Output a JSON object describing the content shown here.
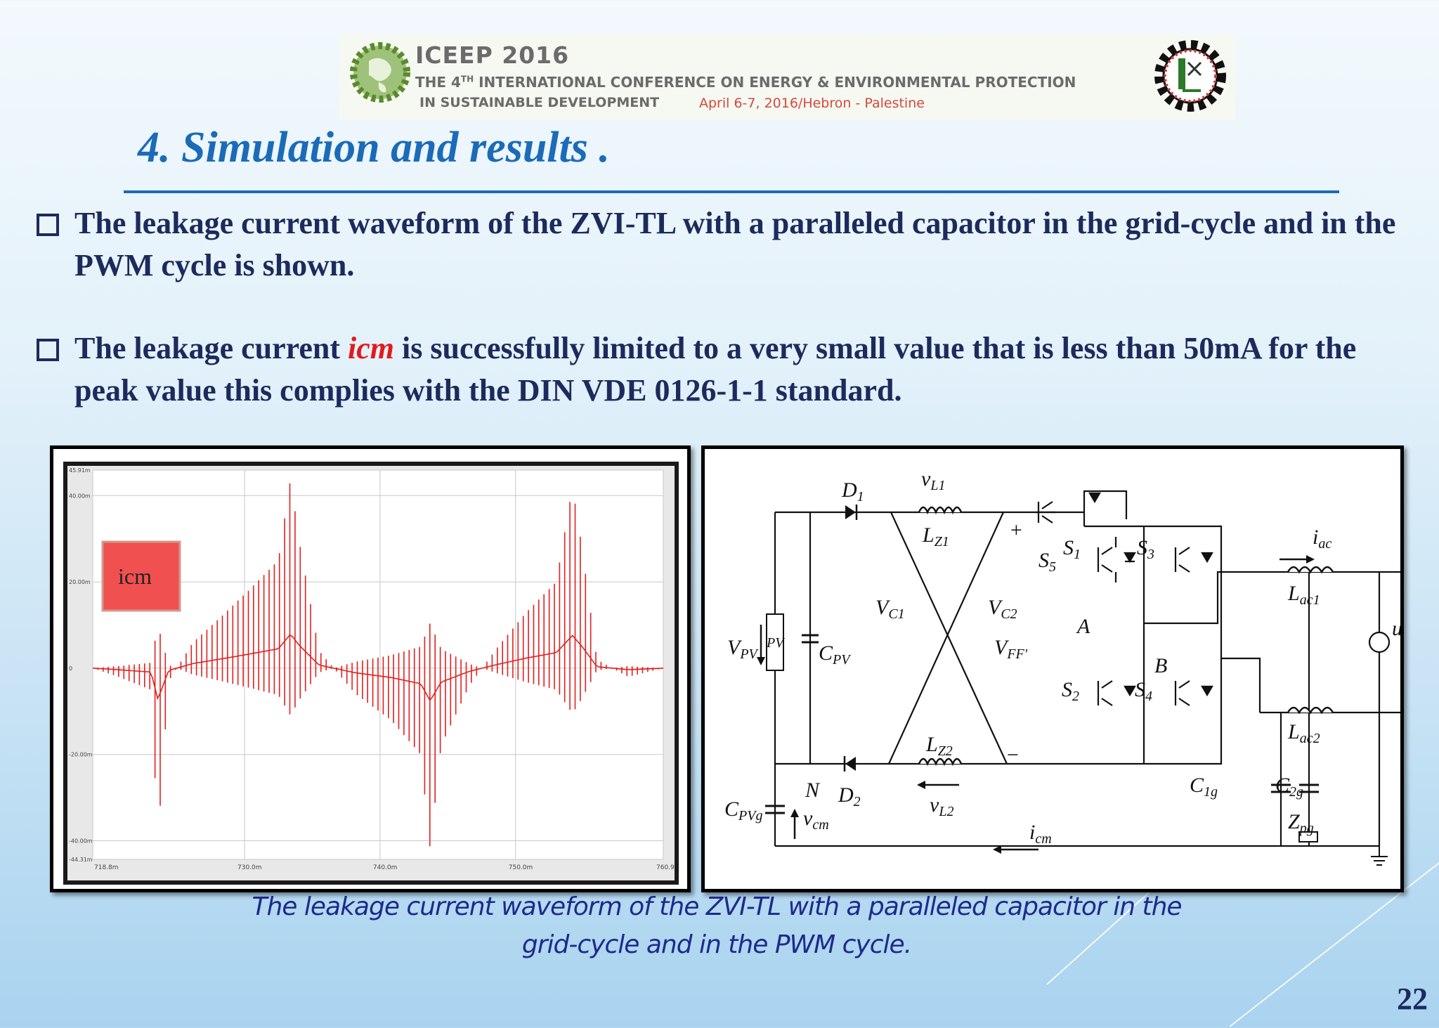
{
  "banner": {
    "title": "ICEEP 2016",
    "full_name_pre": "THE 4",
    "full_name_sup": "TH",
    "full_name_post": " INTERNATIONAL CONFERENCE ON ENERGY & ENVIRONMENTAL PROTECTION",
    "subtitle": "IN SUSTAINABLE DEVELOPMENT",
    "date_location": "April  6-7, 2016/Hebron - Palestine"
  },
  "slide": {
    "title": "4. Simulation and results .",
    "bullets": [
      {
        "text": " The leakage current waveform of the ZVI-TL with a paralleled capacitor in the grid-cycle and in the PWM cycle is shown."
      },
      {
        "pre": "The leakage current ",
        "term": "icm",
        "post": " is successfully limited to a very small value that is less than 50mA for the peak value this complies with the DIN  VDE  0126-1-1 standard."
      }
    ],
    "caption_line1": "The leakage current waveform of the ZVI-TL with a paralleled capacitor in the",
    "caption_line2": "grid-cycle and in the PWM cycle.",
    "page_number": "22"
  },
  "circuit": {
    "labels": {
      "d1": "D",
      "d1_sub": "1",
      "d2": "D",
      "d2_sub": "2",
      "vl1": "v",
      "vl1_sub": "L1",
      "lz1": "L",
      "lz1_sub": "Z1",
      "lz2": "L",
      "lz2_sub": "Z2",
      "vl2": "v",
      "vl2_sub": "L2",
      "s5": "S",
      "s5_sub": "5",
      "s1": "S",
      "s1_sub": "1",
      "s3": "S",
      "s3_sub": "3",
      "s2": "S",
      "s2_sub": "2",
      "s4": "S",
      "s4_sub": "4",
      "vc1": "V",
      "vc1_sub": "C1",
      "vc2": "V",
      "vc2_sub": "C2",
      "vff": "V",
      "vff_sub": "FF'",
      "vpv": "V",
      "vpv_sub": "PV",
      "pv": "PV",
      "cpv": "C",
      "cpv_sub": "PV",
      "cpvg": "C",
      "cpvg_sub": "PVg",
      "n": "N",
      "vcm": "v",
      "vcm_sub": "cm",
      "icm": "i",
      "icm_sub": "cm",
      "iac": "i",
      "iac_sub": "ac",
      "lac1": "L",
      "lac1_sub": "ac1",
      "lac2": "L",
      "lac2_sub": "ac2",
      "ug": "u",
      "ug_sub": "g",
      "a": "A",
      "b": "B",
      "c1g": "C",
      "c1g_sub": "1g",
      "c2g": "C",
      "c2g_sub": "2g",
      "zpg": "Z",
      "zpg_sub": "pg",
      "plus": "+",
      "minus": "−"
    }
  },
  "chart_data": {
    "type": "line",
    "title": "",
    "legend": "icm",
    "xlabel": "",
    "ylabel": "",
    "x_ticks": [
      "718.8m",
      "730.0m",
      "740.0m",
      "750.0m",
      "760.9m"
    ],
    "x_tick_values": [
      0.7188,
      0.73,
      0.74,
      0.75,
      0.7609
    ],
    "y_ticks": [
      "45.91m",
      "40.00m",
      "20.00m",
      "0",
      "-20.00m",
      "-40.00m",
      "-44.31m"
    ],
    "y_tick_values": [
      45.91,
      40.0,
      20.0,
      0,
      -20.0,
      -40.0,
      -44.31
    ],
    "ylim": [
      -44.31,
      45.91
    ],
    "xlim": [
      0.7188,
      0.7609
    ],
    "grid": true,
    "line_color": "#e21f1f",
    "series": [
      {
        "name": "icm",
        "x": [
          0.7188,
          0.7207,
          0.7231,
          0.7236,
          0.7244,
          0.7262,
          0.7283,
          0.7303,
          0.7325,
          0.7334,
          0.734,
          0.7355,
          0.7382,
          0.7408,
          0.743,
          0.7437,
          0.7445,
          0.7466,
          0.7487,
          0.7508,
          0.753,
          0.7542,
          0.7549,
          0.756,
          0.7583,
          0.7609
        ],
        "y": [
          0,
          -2,
          -5,
          -40,
          -3,
          6,
          12,
          18,
          25,
          44,
          30,
          4,
          -6,
          -12,
          -20,
          -42,
          -18,
          -4,
          5,
          13,
          20,
          42,
          28,
          2,
          -2,
          0
        ]
      }
    ]
  }
}
